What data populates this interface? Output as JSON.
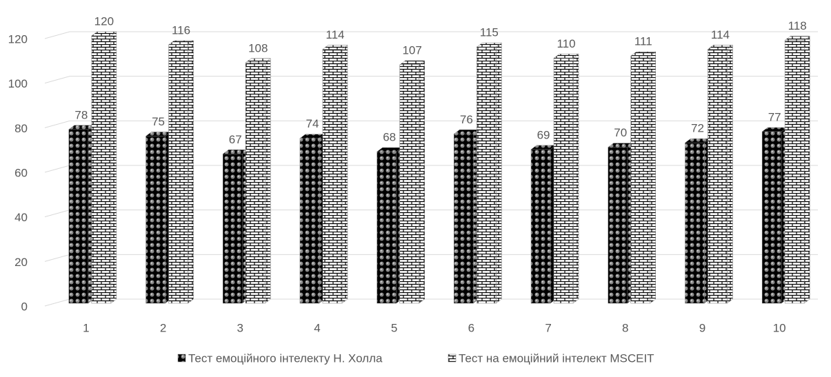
{
  "chart_data": {
    "type": "bar3d",
    "categories": [
      "1",
      "2",
      "3",
      "4",
      "5",
      "6",
      "7",
      "8",
      "9",
      "10"
    ],
    "series": [
      {
        "name": "Тест емоційного інтелекту Н. Холла",
        "color": "#000000",
        "values": [
          78,
          75,
          67,
          74,
          68,
          76,
          69,
          70,
          72,
          77
        ]
      },
      {
        "name": "Тест на емоційний інтелект MSCEIT",
        "color": "#ffffff",
        "values": [
          120,
          116,
          108,
          114,
          107,
          115,
          110,
          111,
          114,
          118
        ]
      }
    ],
    "ylim": [
      0,
      120
    ],
    "yticks": [
      0,
      20,
      40,
      60,
      80,
      100,
      120
    ],
    "grid": true,
    "legend": "bottom"
  }
}
